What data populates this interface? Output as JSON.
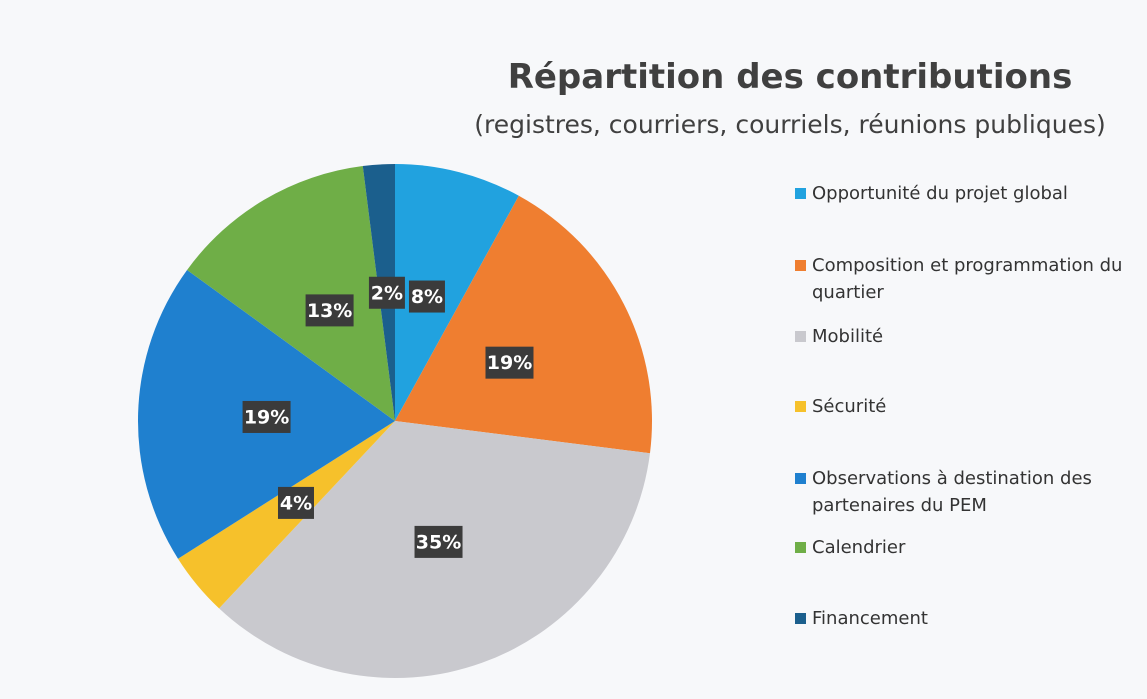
{
  "chart_data": {
    "type": "pie",
    "title": "Répartition des contributions",
    "subtitle": "(registres, courriers, courriels, réunions publiques)",
    "categories": [
      "Opportunité du projet global",
      "Composition et programmation du quartier",
      "Mobilité",
      "Sécurité",
      "Observations à destination des partenaires du PEM",
      "Calendrier",
      "Financement"
    ],
    "values": [
      8,
      19,
      35,
      4,
      19,
      13,
      2
    ],
    "value_labels": [
      "8%",
      "19%",
      "35%",
      "4%",
      "19%",
      "13%",
      "2%"
    ],
    "colors": [
      "#21a2df",
      "#ef7e30",
      "#c9c9ce",
      "#f6c12b",
      "#1f80cf",
      "#6fae47",
      "#1b5f8d"
    ],
    "legend": "right"
  }
}
